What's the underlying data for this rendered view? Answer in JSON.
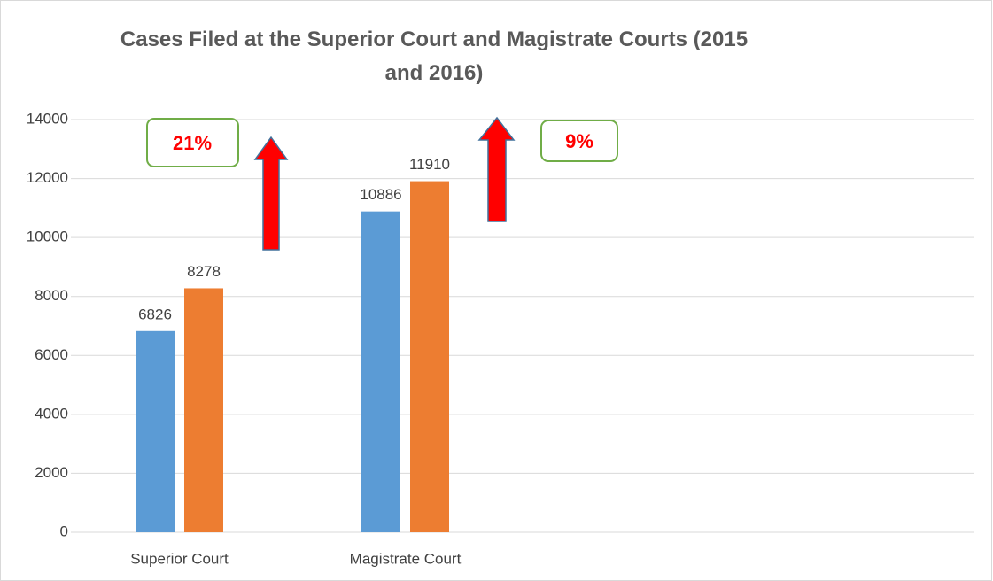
{
  "chart_data": {
    "type": "bar",
    "title": "Cases Filed at the Superior Court and Magistrate Courts (2015 and 2016)",
    "categories": [
      "Superior Court",
      "Magistrate Court",
      null,
      null
    ],
    "series": [
      {
        "color": "#5b9bd5",
        "values": [
          6826,
          10886,
          null,
          null
        ]
      },
      {
        "color": "#ed7d31",
        "values": [
          8278,
          11910,
          null,
          null
        ]
      }
    ],
    "annotations": [
      "21%",
      "9%"
    ],
    "ylim": [
      0,
      14000
    ],
    "yticks": [
      0,
      2000,
      4000,
      6000,
      8000,
      10000,
      12000,
      14000
    ],
    "grid": true
  }
}
